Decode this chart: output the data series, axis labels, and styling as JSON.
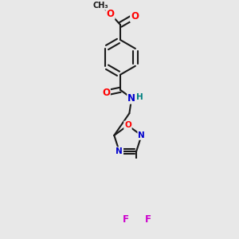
{
  "bg_color": "#e8e8e8",
  "bond_color": "#1a1a1a",
  "bond_width": 1.5,
  "atom_colors": {
    "O": "#ff0000",
    "N": "#0000cc",
    "F": "#cc00cc",
    "H": "#008080",
    "C": "#1a1a1a"
  }
}
